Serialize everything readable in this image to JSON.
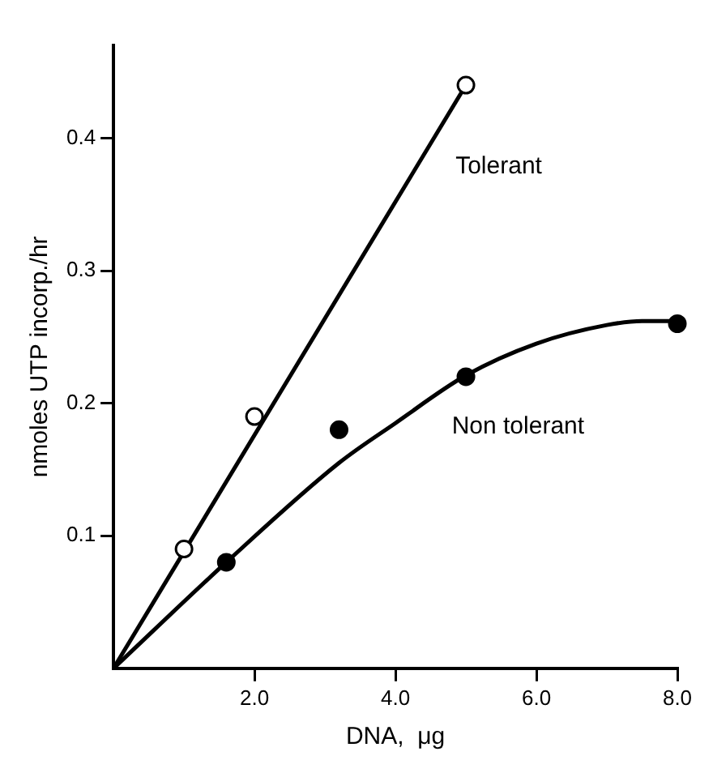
{
  "chart_data": {
    "type": "scatter",
    "xlabel": "DNA,  μg",
    "ylabel": "nmoles UTP incorp./hr",
    "xlim": [
      0,
      8
    ],
    "ylim": [
      0,
      0.47
    ],
    "xticks": [
      {
        "value": 2,
        "label": "2.0"
      },
      {
        "value": 4,
        "label": "4.0"
      },
      {
        "value": 6,
        "label": "6.0"
      },
      {
        "value": 8,
        "label": "8.0"
      }
    ],
    "yticks": [
      0.1,
      0.2,
      0.3,
      0.4
    ],
    "grid": false,
    "legend": false,
    "marker": "circle",
    "series": [
      {
        "type": "scatter",
        "color": "#ffffff",
        "x": [
          1.0,
          2.0,
          5.0
        ],
        "values": [
          0.09,
          0.19,
          0.44
        ]
      },
      {
        "type": "scatter",
        "color": "#000000",
        "x": [
          1.6,
          3.2,
          5.0,
          8.0
        ],
        "values": [
          0.08,
          0.18,
          0.22,
          0.26
        ]
      },
      {
        "type": "line",
        "name": "Tolerant",
        "color": "#000000",
        "marker": "none",
        "x": [
          0,
          5.0
        ],
        "values": [
          0,
          0.44
        ]
      },
      {
        "type": "line",
        "name": "Non tolerant",
        "color": "#000000",
        "marker": "none",
        "x": [
          0,
          1.6,
          3.2,
          4.0,
          5.0,
          6.0,
          7.0,
          7.5,
          8.0
        ],
        "values": [
          0,
          0.08,
          0.155,
          0.185,
          0.221,
          0.245,
          0.259,
          0.262,
          0.262
        ]
      }
    ]
  }
}
